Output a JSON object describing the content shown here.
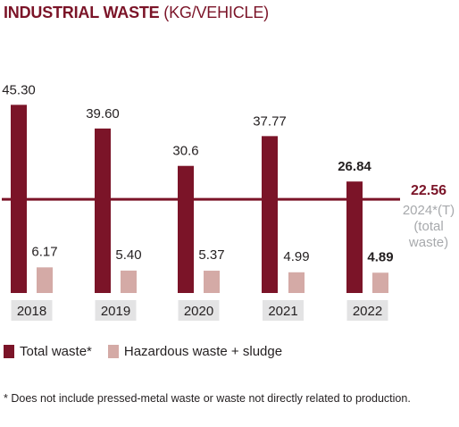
{
  "title_bold": "INDUSTRIAL WASTE",
  "title_unit": "(KG/VEHICLE)",
  "chart_data": {
    "type": "bar",
    "categories": [
      "2018",
      "2019",
      "2020",
      "2021",
      "2022"
    ],
    "series": [
      {
        "name": "Total waste*",
        "values": [
          45.3,
          39.6,
          30.6,
          37.77,
          26.84
        ],
        "labels": [
          "45.30",
          "39.60",
          "30.6",
          "37.77",
          "26.84"
        ],
        "color": "#7b1428"
      },
      {
        "name": "Hazardous waste + sludge",
        "values": [
          6.17,
          5.4,
          5.37,
          4.99,
          4.89
        ],
        "labels": [
          "6.17",
          "5.40",
          "5.37",
          "4.99",
          "4.89"
        ],
        "color": "#d4aaa6"
      }
    ],
    "target": {
      "value": 22.56,
      "label": "22.56",
      "caption": [
        "2024*(T)",
        "(total",
        "waste)"
      ],
      "color": "#7b1428"
    },
    "legend_position": "bottom-left"
  },
  "footnote": "* Does not include pressed-metal waste or waste not directly related to production."
}
